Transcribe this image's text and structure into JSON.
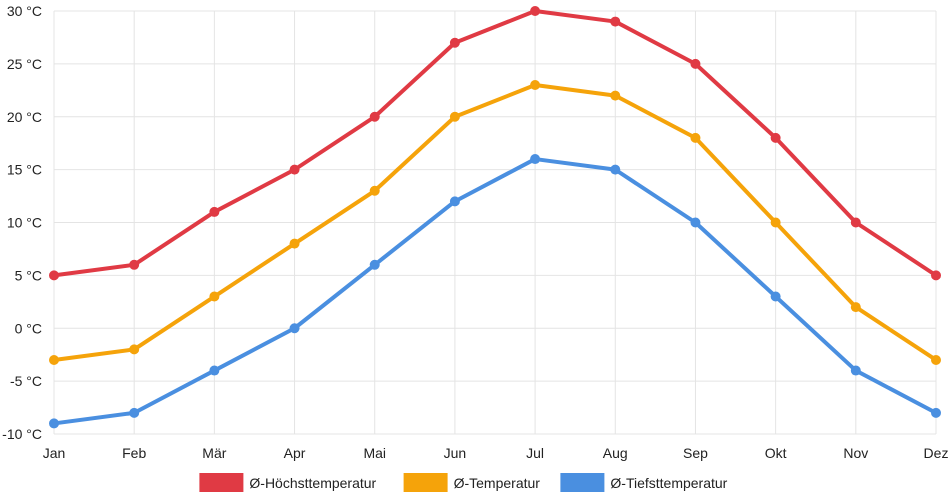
{
  "chart_data": {
    "type": "line",
    "categories": [
      "Jan",
      "Feb",
      "Mär",
      "Apr",
      "Mai",
      "Jun",
      "Jul",
      "Aug",
      "Sep",
      "Okt",
      "Nov",
      "Dez"
    ],
    "unit": "°C",
    "ylim": [
      -10,
      30
    ],
    "yticks": [
      -10,
      -5,
      0,
      5,
      10,
      15,
      20,
      25,
      30
    ],
    "ytick_labels": [
      "-10 °C",
      "-5 °C",
      "0 °C",
      "5 °C",
      "10 °C",
      "15 °C",
      "20 °C",
      "25 °C",
      "30 °C"
    ],
    "grid": true,
    "legend_position": "bottom",
    "series": [
      {
        "name": "Ø-Höchsttemperatur",
        "color": "#e03a44",
        "values": [
          5,
          6,
          11,
          15,
          20,
          27,
          30,
          29,
          25,
          18,
          10,
          5
        ]
      },
      {
        "name": "Ø-Temperatur",
        "color": "#f5a30a",
        "values": [
          -3,
          -2,
          3,
          8,
          13,
          20,
          23,
          22,
          18,
          10,
          2,
          -3
        ]
      },
      {
        "name": "Ø-Tiefsttemperatur",
        "color": "#4a8fe0",
        "values": [
          -9,
          -8,
          -4,
          0,
          6,
          12,
          16,
          15,
          10,
          3,
          -4,
          -8
        ]
      }
    ]
  }
}
